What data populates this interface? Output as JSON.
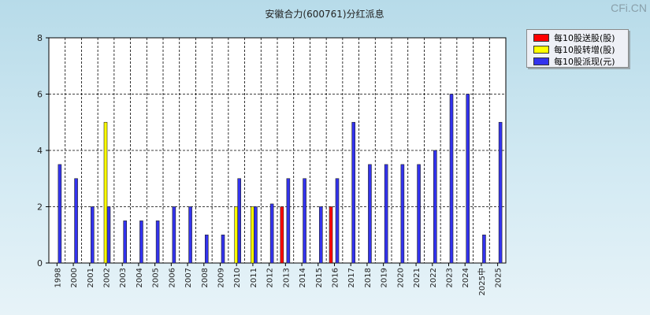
{
  "watermark": "CFi.CN",
  "chart_data": {
    "type": "bar",
    "title": "安徽合力(600761)分红派息",
    "categories": [
      "1998",
      "2000",
      "2001",
      "2002",
      "2003",
      "2004",
      "2005",
      "2006",
      "2007",
      "2008",
      "2009",
      "2010",
      "2011",
      "2012",
      "2013",
      "2014",
      "2015",
      "2016",
      "2017",
      "2018",
      "2019",
      "2020",
      "2021",
      "2022",
      "2023",
      "2024",
      "2025中",
      "2025"
    ],
    "ylim": [
      0,
      8
    ],
    "yticks": [
      0,
      2,
      4,
      6,
      8
    ],
    "grid": true,
    "legend_position": "top-right",
    "series": [
      {
        "name": "每10股送股(股)",
        "color": "#ff0000",
        "values": [
          0,
          0,
          0,
          0,
          0,
          0,
          0,
          0,
          0,
          0,
          0,
          0,
          0,
          0,
          2,
          0,
          0,
          2,
          0,
          0,
          0,
          0,
          0,
          0,
          0,
          0,
          0,
          0
        ]
      },
      {
        "name": "每10股转增(股)",
        "color": "#ffff00",
        "values": [
          0,
          0,
          0,
          5,
          0,
          0,
          0,
          0,
          0,
          0,
          0,
          2,
          2,
          0,
          0,
          0,
          0,
          0,
          0,
          0,
          0,
          0,
          0,
          0,
          0,
          0,
          0,
          0
        ]
      },
      {
        "name": "每10股派现(元)",
        "color": "#3333ee",
        "values": [
          3.5,
          3,
          2,
          2,
          1.5,
          1.5,
          1.5,
          2,
          2,
          1,
          1,
          3,
          2,
          2.1,
          3,
          3,
          2,
          3,
          5,
          3.5,
          3.5,
          3.5,
          3.5,
          4,
          6,
          6,
          1,
          5
        ]
      }
    ]
  }
}
